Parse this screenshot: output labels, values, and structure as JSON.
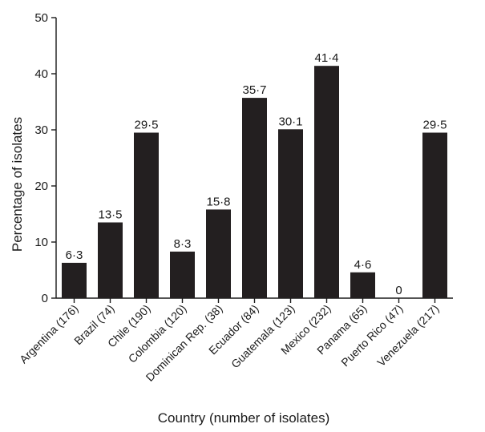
{
  "chart_data": {
    "type": "bar",
    "title": "",
    "xlabel": "Country (number of isolates)",
    "ylabel": "Percentage of isolates",
    "ylim": [
      0,
      50
    ],
    "yticks": [
      "0",
      "10",
      "20",
      "30",
      "40",
      "50"
    ],
    "categories": [
      "Argentina (176)",
      "Brazil (74)",
      "Chile (190)",
      "Colombia (120)",
      "Dominican Rep. (38)",
      "Ecuador (84)",
      "Guatemala (123)",
      "Mexico (232)",
      "Panama (65)",
      "Puerto Rico (47)",
      "Venezuela (217)"
    ],
    "values": [
      6.3,
      13.5,
      29.5,
      8.3,
      15.8,
      35.7,
      30.1,
      41.4,
      4.6,
      0,
      29.5
    ],
    "data_labels": [
      "6·3",
      "13·5",
      "29·5",
      "8·3",
      "15·8",
      "35·7",
      "30·1",
      "41·4",
      "4·6",
      "0",
      "29·5"
    ],
    "bar_color": "#231f20",
    "grid": false,
    "legend": false
  }
}
